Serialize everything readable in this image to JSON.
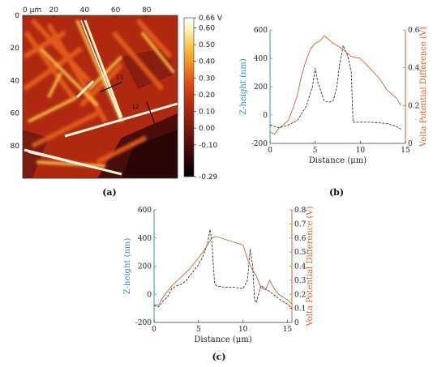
{
  "chart_data": [
    {
      "type": "heatmap",
      "panel_label": "(a)",
      "x_ticks": [
        "0 µm",
        "20",
        "40",
        "60",
        "80"
      ],
      "y_ticks": [
        "0",
        "20",
        "40",
        "60",
        "80"
      ],
      "colorbar": {
        "ticks": [
          "0.66 V",
          "0.60",
          "0.50",
          "0.40",
          "0.30",
          "0.20",
          "0.10",
          "0.00",
          "-0.10",
          "-0.29"
        ],
        "values": [
          0.66,
          0.6,
          0.5,
          0.4,
          0.3,
          0.2,
          0.1,
          0.0,
          -0.1,
          -0.29
        ],
        "min": -0.29,
        "max": 0.66,
        "colors": [
          "#000000",
          "#3a0a0a",
          "#7a1a10",
          "#b22a10",
          "#dc4a12",
          "#f08a20",
          "#f7c44a",
          "#fdf0b0",
          "#ffffff"
        ]
      },
      "annotations": [
        {
          "text": "L1",
          "x1": 50,
          "y1": 47,
          "x2": 64,
          "y2": 41,
          "label_x": 63,
          "label_y": 39
        },
        {
          "text": "L2",
          "x1": 80,
          "y1": 53,
          "x2": 85,
          "y2": 66,
          "label_x": 73,
          "label_y": 57
        }
      ]
    },
    {
      "type": "line",
      "panel_label": "(b)",
      "xlabel": "Distance (μm)",
      "ylabel_left": "Z-height (nm)",
      "ylabel_right": "Volta Potential Difference (V)",
      "xlim": [
        0,
        15
      ],
      "ylim_left": [
        -200,
        600
      ],
      "ylim_right": [
        0,
        0.6
      ],
      "x_ticks": [
        0,
        5,
        10,
        15
      ],
      "y_ticks_left": [
        -200,
        0,
        200,
        400,
        600
      ],
      "y_ticks_right": [
        0,
        0.2,
        0.4,
        0.6
      ],
      "series": [
        {
          "axis": "left",
          "style": "dashed",
          "color": "#333333",
          "points": [
            [
              0,
              -70
            ],
            [
              1,
              -90
            ],
            [
              2,
              -70
            ],
            [
              3,
              -40
            ],
            [
              4,
              60
            ],
            [
              4.7,
              200
            ],
            [
              5,
              330
            ],
            [
              5.3,
              230
            ],
            [
              6,
              100
            ],
            [
              6.5,
              90
            ],
            [
              7,
              100
            ],
            [
              7.4,
              200
            ],
            [
              7.7,
              350
            ],
            [
              8.1,
              490
            ],
            [
              8.6,
              420
            ],
            [
              9,
              300
            ],
            [
              9.2,
              -50
            ],
            [
              10,
              -50
            ],
            [
              11,
              -50
            ],
            [
              12,
              -55
            ],
            [
              13,
              -60
            ],
            [
              14,
              -80
            ],
            [
              14.5,
              -100
            ]
          ]
        },
        {
          "axis": "right",
          "style": "solid",
          "color": "#d0622e",
          "points": [
            [
              0,
              0.06
            ],
            [
              0.5,
              0.05
            ],
            [
              1,
              0.08
            ],
            [
              2,
              0.12
            ],
            [
              2.5,
              0.18
            ],
            [
              3,
              0.25
            ],
            [
              3.5,
              0.36
            ],
            [
              4,
              0.44
            ],
            [
              4.5,
              0.5
            ],
            [
              5,
              0.53
            ],
            [
              5.5,
              0.54
            ],
            [
              6,
              0.57
            ],
            [
              6.5,
              0.55
            ],
            [
              7,
              0.53
            ],
            [
              8,
              0.5
            ],
            [
              9,
              0.46
            ],
            [
              10,
              0.45
            ],
            [
              11,
              0.4
            ],
            [
              12,
              0.35
            ],
            [
              13,
              0.28
            ],
            [
              14,
              0.24
            ],
            [
              14.5,
              0.2
            ]
          ]
        }
      ]
    },
    {
      "type": "line",
      "panel_label": "(c)",
      "xlabel": "Distance (μm)",
      "ylabel_left": "Z-height (nm)",
      "ylabel_right": "Volta Potential Difference (V)",
      "xlim": [
        0,
        15.5
      ],
      "ylim_left": [
        -200,
        600
      ],
      "ylim_right": [
        0,
        0.8
      ],
      "x_ticks": [
        0,
        5,
        10,
        15
      ],
      "y_ticks_left": [
        -200,
        0,
        200,
        400,
        600
      ],
      "y_ticks_right": [
        0,
        0.1,
        0.2,
        0.3,
        0.4,
        0.5,
        0.6,
        0.7,
        0.8
      ],
      "series": [
        {
          "axis": "left",
          "style": "dashed",
          "color": "#333333",
          "points": [
            [
              0,
              -80
            ],
            [
              0.5,
              -90
            ],
            [
              1,
              -50
            ],
            [
              1.5,
              -20
            ],
            [
              2,
              40
            ],
            [
              2.5,
              60
            ],
            [
              3,
              70
            ],
            [
              3.5,
              90
            ],
            [
              4,
              130
            ],
            [
              4.5,
              170
            ],
            [
              5,
              210
            ],
            [
              5.5,
              270
            ],
            [
              6,
              360
            ],
            [
              6.3,
              460
            ],
            [
              6.5,
              370
            ],
            [
              6.8,
              80
            ],
            [
              7,
              60
            ],
            [
              8,
              50
            ],
            [
              9,
              50
            ],
            [
              10,
              40
            ],
            [
              10.5,
              100
            ],
            [
              10.8,
              320
            ],
            [
              11.1,
              200
            ],
            [
              11.3,
              -40
            ],
            [
              11.5,
              -60
            ],
            [
              12,
              60
            ],
            [
              12.5,
              40
            ],
            [
              13,
              20
            ],
            [
              14,
              -30
            ],
            [
              15,
              -70
            ],
            [
              15.5,
              -100
            ]
          ]
        },
        {
          "axis": "right",
          "style": "solid",
          "color": "#d0622e",
          "points": [
            [
              0,
              0.13
            ],
            [
              0.5,
              0.12
            ],
            [
              1,
              0.18
            ],
            [
              2,
              0.26
            ],
            [
              3,
              0.32
            ],
            [
              4,
              0.38
            ],
            [
              5,
              0.46
            ],
            [
              5.5,
              0.5
            ],
            [
              6,
              0.55
            ],
            [
              6.5,
              0.6
            ],
            [
              7,
              0.61
            ],
            [
              8,
              0.59
            ],
            [
              9,
              0.57
            ],
            [
              10,
              0.55
            ],
            [
              10.5,
              0.45
            ],
            [
              11,
              0.38
            ],
            [
              11.5,
              0.33
            ],
            [
              12,
              0.25
            ],
            [
              12.5,
              0.23
            ],
            [
              13,
              0.3
            ],
            [
              13.5,
              0.24
            ],
            [
              14,
              0.2
            ],
            [
              15,
              0.16
            ],
            [
              15.5,
              0.13
            ]
          ]
        }
      ]
    }
  ]
}
